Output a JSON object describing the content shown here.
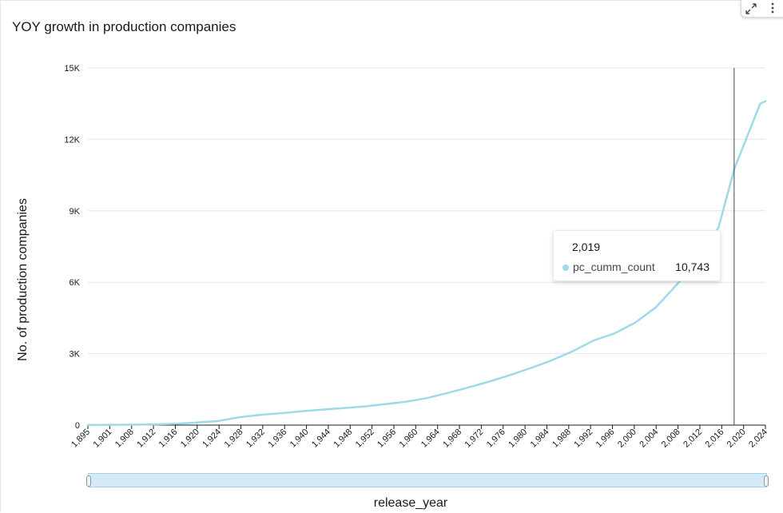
{
  "title": "YOY growth in production companies",
  "colors": {
    "line": "#9ed9ea",
    "grid": "#e6e6e6",
    "axis": "#16191f",
    "crosshair": "#414750"
  },
  "tooltip": {
    "title": "2,019",
    "series_name": "pc_cumm_count",
    "value": "10,743"
  },
  "chart_data": {
    "type": "line",
    "xlabel": "release_year",
    "ylabel": "No. of production companies",
    "ylim": [
      0,
      15000
    ],
    "y_ticks": [
      {
        "value": 0,
        "label": "0"
      },
      {
        "value": 3000,
        "label": "3K"
      },
      {
        "value": 6000,
        "label": "6K"
      },
      {
        "value": 9000,
        "label": "9K"
      },
      {
        "value": 12000,
        "label": "12K"
      },
      {
        "value": 15000,
        "label": "15K"
      }
    ],
    "x_tick_labels": [
      "1,895",
      "1,901",
      "1,908",
      "1,912",
      "1,916",
      "1,920",
      "1,924",
      "1,928",
      "1,932",
      "1,936",
      "1,940",
      "1,944",
      "1,948",
      "1,952",
      "1,956",
      "1,960",
      "1,964",
      "1,968",
      "1,972",
      "1,976",
      "1,980",
      "1,984",
      "1,988",
      "1,992",
      "1,996",
      "2,000",
      "2,004",
      "2,008",
      "2,012",
      "2,016",
      "2,020",
      "2,024"
    ],
    "grid": true,
    "highlight_x": 2019,
    "series": [
      {
        "name": "pc_cumm_count",
        "x": [
          1895,
          1901,
          1908,
          1912,
          1916,
          1920,
          1924,
          1928,
          1932,
          1936,
          1940,
          1944,
          1948,
          1952,
          1956,
          1960,
          1964,
          1968,
          1972,
          1976,
          1980,
          1984,
          1988,
          1992,
          1996,
          2000,
          2004,
          2008,
          2012,
          2016,
          2019,
          2020,
          2024,
          2025
        ],
        "y": [
          5,
          15,
          30,
          60,
          110,
          170,
          330,
          430,
          500,
          580,
          650,
          710,
          780,
          880,
          980,
          1130,
          1350,
          1580,
          1830,
          2100,
          2400,
          2720,
          3100,
          3550,
          3850,
          4300,
          4950,
          5900,
          6900,
          8300,
          10743,
          11300,
          13500,
          13600
        ]
      }
    ]
  }
}
